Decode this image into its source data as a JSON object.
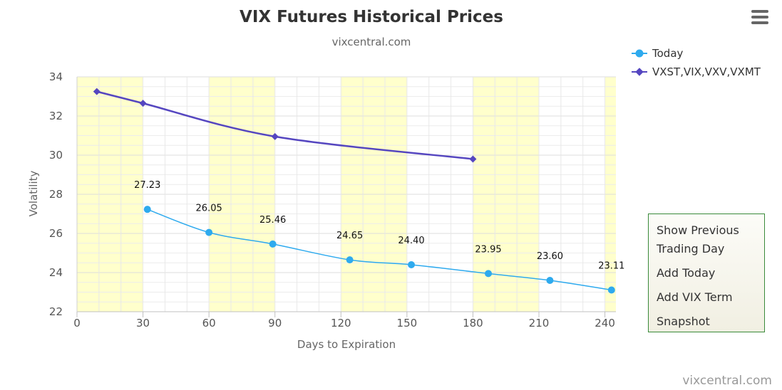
{
  "menu": {
    "items": [
      {
        "label": "Show Previous Trading Day"
      },
      {
        "label": "Add Today"
      },
      {
        "label": "Add VIX Term"
      },
      {
        "label": "Snapshot"
      }
    ]
  },
  "credit": "vixcentral.com",
  "colors": {
    "today": "#2eaaee",
    "term": "#5546c0",
    "band": "#ffffcc",
    "grid": "#e6e6e6",
    "menu_border": "#3a8a3a"
  },
  "icons": {
    "menu": "hamburger-menu-icon"
  },
  "chart_data": {
    "type": "line",
    "title": "VIX Futures Historical Prices",
    "subtitle": "vixcentral.com",
    "xlabel": "Days to Expiration",
    "ylabel": "Volatility",
    "xlim": [
      0,
      245
    ],
    "ylim": [
      22,
      34
    ],
    "xticks": [
      0,
      30,
      60,
      90,
      120,
      150,
      180,
      210,
      240
    ],
    "yticks": [
      22,
      24,
      26,
      28,
      30,
      32,
      34
    ],
    "grid": true,
    "legend_position": "top-right",
    "bands": [
      [
        0,
        30
      ],
      [
        60,
        90
      ],
      [
        120,
        150
      ],
      [
        180,
        210
      ],
      [
        240,
        245
      ]
    ],
    "series": [
      {
        "name": "Today",
        "marker": "circle",
        "x": [
          32,
          60,
          89,
          124,
          152,
          187,
          215,
          243
        ],
        "y": [
          27.23,
          26.05,
          25.46,
          24.65,
          24.4,
          23.95,
          23.6,
          23.11
        ],
        "labels": [
          "27.23",
          "26.05",
          "25.46",
          "24.65",
          "24.40",
          "23.95",
          "23.60",
          "23.11"
        ]
      },
      {
        "name": "VXST,VIX,VXV,VXMT",
        "marker": "diamond",
        "x": [
          9,
          30,
          90,
          180
        ],
        "y": [
          33.25,
          32.65,
          30.95,
          29.8
        ]
      }
    ]
  }
}
